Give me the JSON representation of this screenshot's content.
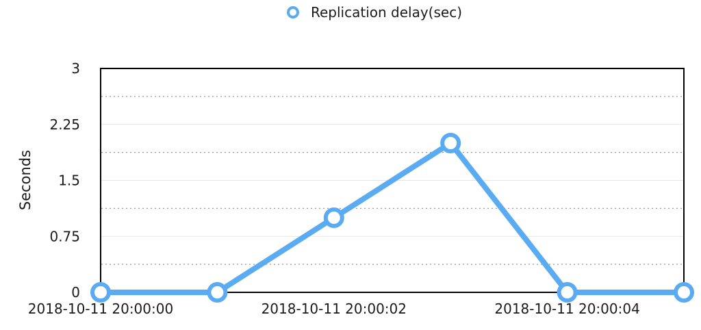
{
  "chart_data": {
    "type": "line",
    "title": "",
    "xlabel": "",
    "ylabel": "Seconds",
    "ylim": [
      0,
      3
    ],
    "y_ticks": [
      "0",
      "0.75",
      "1.5",
      "2.25",
      "3"
    ],
    "x_tick_labels": [
      "2018-10-11 20:00:00",
      "2018-10-11 20:00:02",
      "2018-10-11 20:00:04"
    ],
    "x": [
      "2018-10-11 20:00:00",
      "2018-10-11 20:00:01",
      "2018-10-11 20:00:02",
      "2018-10-11 20:00:03",
      "2018-10-11 20:00:04",
      "2018-10-11 20:00:05"
    ],
    "series": [
      {
        "name": "Replication delay(sec)",
        "values": [
          0,
          0,
          1,
          2,
          0,
          0
        ],
        "color": "#5aabf2"
      }
    ],
    "grid": true,
    "legend_position": "top-center"
  }
}
